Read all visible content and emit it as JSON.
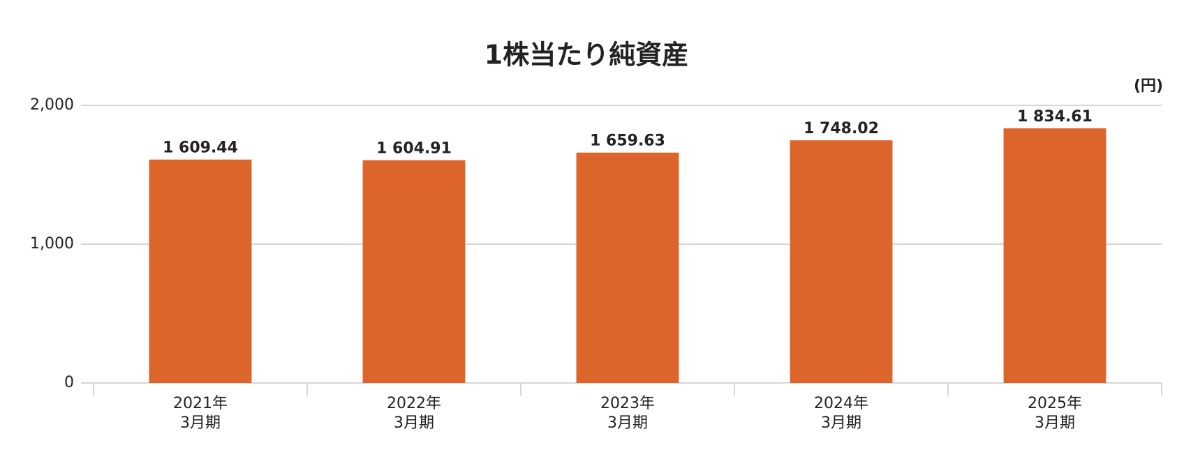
{
  "chart_data": {
    "type": "bar",
    "title": "1株当たり純資産",
    "unit_label": "(円)",
    "categories": [
      "2021年\n3月期",
      "2022年\n3月期",
      "2023年\n3月期",
      "2024年\n3月期",
      "2025年\n3月期"
    ],
    "values": [
      1609.44,
      1604.91,
      1659.63,
      1748.02,
      1834.61
    ],
    "value_labels": [
      "1 609.44",
      "1 604.91",
      "1 659.63",
      "1 748.02",
      "1 834.61"
    ],
    "color": "#dc652b",
    "ylim": [
      0,
      2000
    ],
    "yticks": [
      0,
      {
        "value": 1000,
        "label": "1,000"
      },
      {
        "value": 2000,
        "label": "2,000"
      }
    ],
    "grid": true
  }
}
